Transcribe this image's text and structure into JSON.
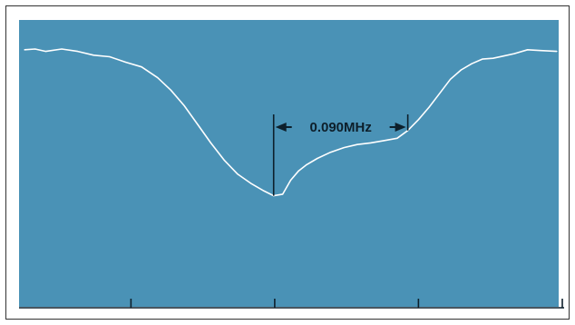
{
  "chart_data": {
    "type": "line",
    "title": "",
    "xlabel": "",
    "ylabel": "",
    "xlim": [
      0,
      1
    ],
    "ylim": [
      0,
      1
    ],
    "grid": false,
    "x_ticks": [
      0.2,
      0.47,
      0.74
    ],
    "series": [
      {
        "values_x": [
          0.0,
          0.02,
          0.04,
          0.07,
          0.1,
          0.13,
          0.16,
          0.19,
          0.22,
          0.25,
          0.275,
          0.3,
          0.325,
          0.35,
          0.375,
          0.4,
          0.425,
          0.45,
          0.468,
          0.485,
          0.5,
          0.515,
          0.53,
          0.55,
          0.575,
          0.6,
          0.625,
          0.65,
          0.675,
          0.7,
          0.72,
          0.74,
          0.76,
          0.78,
          0.8,
          0.82,
          0.84,
          0.86,
          0.88,
          0.9,
          0.92,
          0.945,
          0.97,
          1.0
        ],
        "values_y": [
          0.96,
          0.965,
          0.95,
          0.965,
          0.95,
          0.925,
          0.915,
          0.88,
          0.85,
          0.78,
          0.7,
          0.6,
          0.48,
          0.36,
          0.25,
          0.16,
          0.1,
          0.05,
          0.02,
          0.03,
          0.12,
          0.18,
          0.22,
          0.26,
          0.3,
          0.33,
          0.35,
          0.36,
          0.375,
          0.39,
          0.44,
          0.51,
          0.59,
          0.68,
          0.77,
          0.83,
          0.87,
          0.9,
          0.905,
          0.92,
          0.935,
          0.96,
          0.955,
          0.95
        ]
      }
    ],
    "annotations": [
      {
        "text": "0.090MHz",
        "x_start": 0.468,
        "x_end": 0.72
      }
    ],
    "colors": {
      "plot_background": "#4a92b6",
      "trace": "#ffffff",
      "annotation": "#0d1f2b",
      "frame": "#333333"
    }
  }
}
